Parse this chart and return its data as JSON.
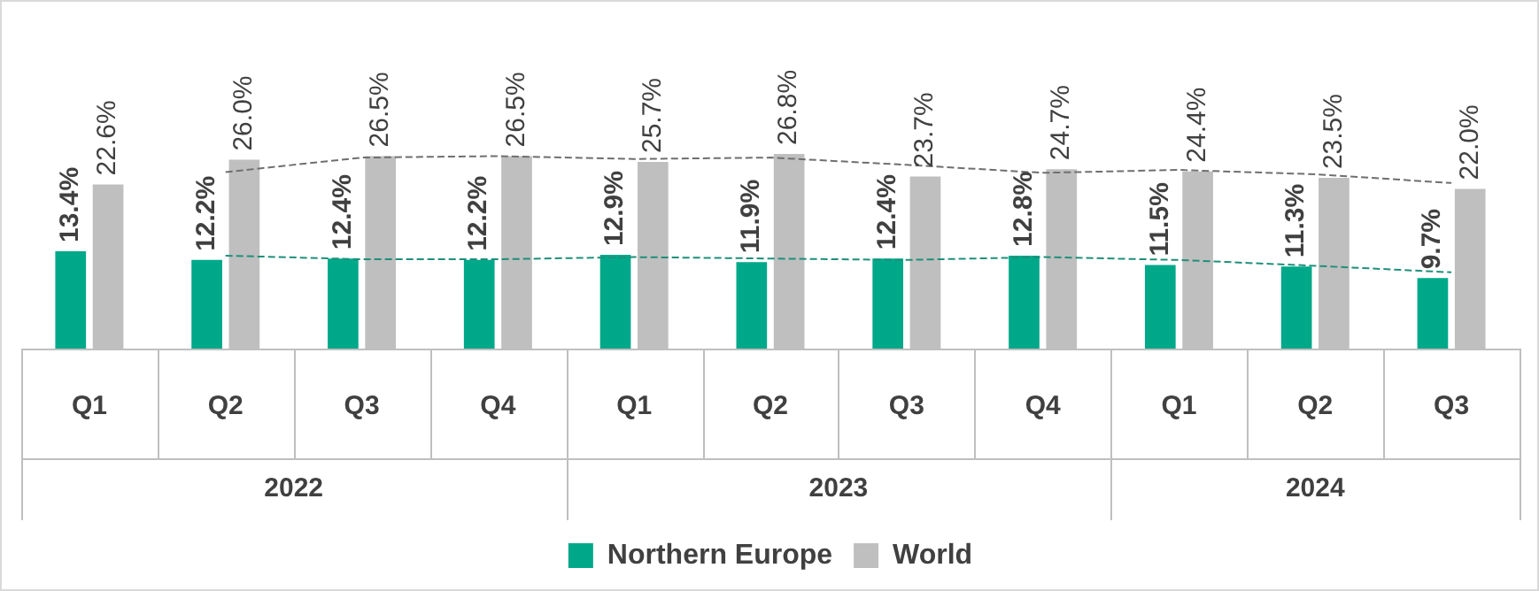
{
  "chart_data": {
    "type": "bar",
    "categories": [
      "Q1",
      "Q2",
      "Q3",
      "Q4",
      "Q1",
      "Q2",
      "Q3",
      "Q4",
      "Q1",
      "Q2",
      "Q3"
    ],
    "annotations": [
      "2022",
      "2023",
      "2024"
    ],
    "legend": "bottom",
    "grid": false,
    "series": [
      {
        "name": "Northern Europe",
        "color": "#00a88a",
        "values": [
          13.4,
          12.2,
          12.4,
          12.2,
          12.9,
          11.9,
          12.4,
          12.8,
          11.5,
          11.3,
          9.7
        ],
        "value_labels": [
          "13.4%",
          "12.2%",
          "12.4%",
          "12.2%",
          "12.9%",
          "11.9%",
          "12.4%",
          "12.8%",
          "11.5%",
          "11.3%",
          "9.7%"
        ]
      },
      {
        "name": "World",
        "color": "#bfbfbf",
        "values": [
          22.6,
          26.0,
          26.5,
          26.5,
          25.7,
          26.8,
          23.7,
          24.7,
          24.4,
          23.5,
          22.0
        ],
        "value_labels": [
          "22.6%",
          "26.0%",
          "26.5%",
          "26.5%",
          "25.7%",
          "26.8%",
          "23.7%",
          "24.7%",
          "24.4%",
          "23.5%",
          "22.0%"
        ]
      },
      {
        "type": "line",
        "color": "#1f8f7a",
        "line_style": "dashed",
        "values": [
          null,
          12.8,
          12.3,
          12.3,
          12.6,
          12.4,
          12.2,
          12.6,
          12.2,
          11.4,
          10.5
        ]
      },
      {
        "type": "line",
        "color": "#6f6f6f",
        "line_style": "dashed",
        "values": [
          null,
          24.3,
          26.3,
          26.5,
          26.1,
          26.3,
          25.3,
          24.2,
          24.6,
          24.0,
          22.8
        ]
      }
    ]
  }
}
